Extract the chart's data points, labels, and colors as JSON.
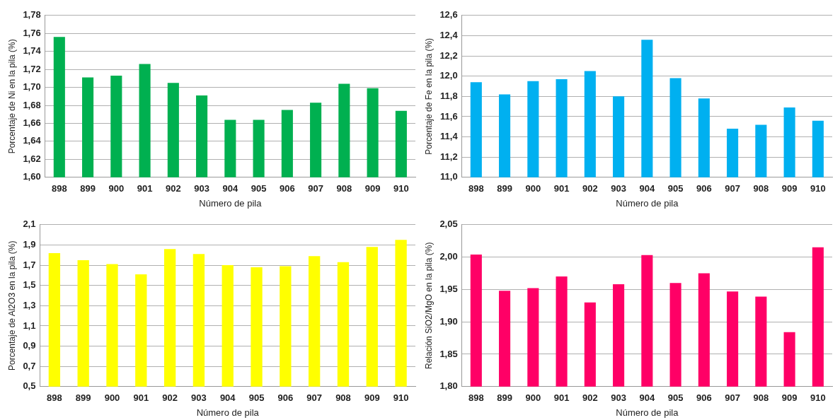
{
  "chart_data": [
    {
      "type": "bar",
      "xlabel": "Número de pila",
      "ylabel": "Porcentaje de Ni en la pila (%)",
      "categories": [
        "898",
        "899",
        "900",
        "901",
        "902",
        "903",
        "904",
        "905",
        "906",
        "907",
        "908",
        "909",
        "910"
      ],
      "values": [
        1.756,
        1.711,
        1.713,
        1.726,
        1.705,
        1.691,
        1.664,
        1.664,
        1.675,
        1.683,
        1.704,
        1.699,
        1.674
      ],
      "color": "#00b050",
      "ylim": [
        1.6,
        1.78
      ],
      "yticks": [
        {
          "value": 1.6,
          "label": "1,60"
        },
        {
          "value": 1.62,
          "label": "1,62"
        },
        {
          "value": 1.64,
          "label": "1,64"
        },
        {
          "value": 1.66,
          "label": "1,66"
        },
        {
          "value": 1.68,
          "label": "1,68"
        },
        {
          "value": 1.7,
          "label": "1,70"
        },
        {
          "value": 1.72,
          "label": "1,72"
        },
        {
          "value": 1.74,
          "label": "1,74"
        },
        {
          "value": 1.76,
          "label": "1,76"
        },
        {
          "value": 1.78,
          "label": "1,78"
        }
      ],
      "grid": "y"
    },
    {
      "type": "bar",
      "xlabel": "Número de pila",
      "ylabel": "Porcentaje de Fe en la pila (%)",
      "categories": [
        "898",
        "899",
        "900",
        "901",
        "902",
        "903",
        "904",
        "905",
        "906",
        "907",
        "908",
        "909",
        "910"
      ],
      "values": [
        11.94,
        11.82,
        11.95,
        11.97,
        12.05,
        11.8,
        12.36,
        11.98,
        11.78,
        11.48,
        11.52,
        11.69,
        11.56
      ],
      "color": "#00b0f0",
      "ylim": [
        11.0,
        12.6
      ],
      "yticks": [
        {
          "value": 11.0,
          "label": "11,0"
        },
        {
          "value": 11.2,
          "label": "11,2"
        },
        {
          "value": 11.4,
          "label": "11,4"
        },
        {
          "value": 11.6,
          "label": "11,6"
        },
        {
          "value": 11.8,
          "label": "11,8"
        },
        {
          "value": 12.0,
          "label": "12,0"
        },
        {
          "value": 12.2,
          "label": "12,2"
        },
        {
          "value": 12.4,
          "label": "12,4"
        },
        {
          "value": 12.6,
          "label": "12,6"
        }
      ],
      "grid": "y"
    },
    {
      "type": "bar",
      "xlabel": "Número de pila",
      "ylabel": "Porcentaje de Al2O3 en la pila (%)",
      "categories": [
        "898",
        "899",
        "900",
        "901",
        "902",
        "903",
        "904",
        "905",
        "906",
        "907",
        "908",
        "909",
        "910"
      ],
      "values": [
        1.82,
        1.75,
        1.71,
        1.61,
        1.86,
        1.81,
        1.7,
        1.68,
        1.69,
        1.79,
        1.73,
        1.88,
        1.95
      ],
      "color": "#ffff00",
      "ylim": [
        0.5,
        2.1
      ],
      "yticks": [
        {
          "value": 0.5,
          "label": "0,5"
        },
        {
          "value": 0.7,
          "label": "0,7"
        },
        {
          "value": 0.9,
          "label": "0,9"
        },
        {
          "value": 1.1,
          "label": "1,1"
        },
        {
          "value": 1.3,
          "label": "1,3"
        },
        {
          "value": 1.5,
          "label": "1,5"
        },
        {
          "value": 1.7,
          "label": "1,7"
        },
        {
          "value": 1.9,
          "label": "1,9"
        },
        {
          "value": 2.1,
          "label": "2,1"
        }
      ],
      "grid": "y"
    },
    {
      "type": "bar",
      "xlabel": "Número de pila",
      "ylabel": "Relación SiO2/MgO en la pila (%)",
      "categories": [
        "898",
        "899",
        "900",
        "901",
        "902",
        "903",
        "904",
        "905",
        "906",
        "907",
        "908",
        "909",
        "910"
      ],
      "values": [
        2.004,
        1.948,
        1.952,
        1.97,
        1.93,
        1.958,
        2.003,
        1.96,
        1.975,
        1.947,
        1.939,
        1.884,
        2.015
      ],
      "color": "#ff0066",
      "ylim": [
        1.8,
        2.05
      ],
      "yticks": [
        {
          "value": 1.8,
          "label": "1,80"
        },
        {
          "value": 1.85,
          "label": "1,85"
        },
        {
          "value": 1.9,
          "label": "1,90"
        },
        {
          "value": 1.95,
          "label": "1,95"
        },
        {
          "value": 2.0,
          "label": "2,00"
        },
        {
          "value": 2.05,
          "label": "2,05"
        }
      ],
      "grid": "y"
    }
  ]
}
